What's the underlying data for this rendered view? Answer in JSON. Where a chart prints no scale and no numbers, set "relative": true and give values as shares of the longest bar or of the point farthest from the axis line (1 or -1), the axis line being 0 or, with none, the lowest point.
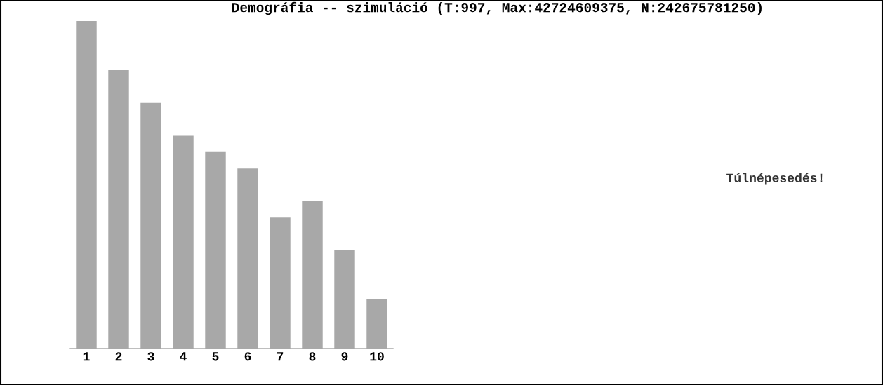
{
  "chart_data": {
    "type": "bar",
    "title": "Demográfia -- szimuláció (T:997, Max:42724609375, N:242675781250)",
    "categories": [
      "1",
      "2",
      "3",
      "4",
      "5",
      "6",
      "7",
      "8",
      "9",
      "10"
    ],
    "values": [
      1,
      0.85,
      0.75,
      0.65,
      0.6,
      0.55,
      0.4,
      0.45,
      0.3,
      0.15
    ],
    "color": "#a8a8a8",
    "relative": true,
    "grid": false,
    "legend": false,
    "annotations": [
      "Túlnépesedés!"
    ]
  }
}
